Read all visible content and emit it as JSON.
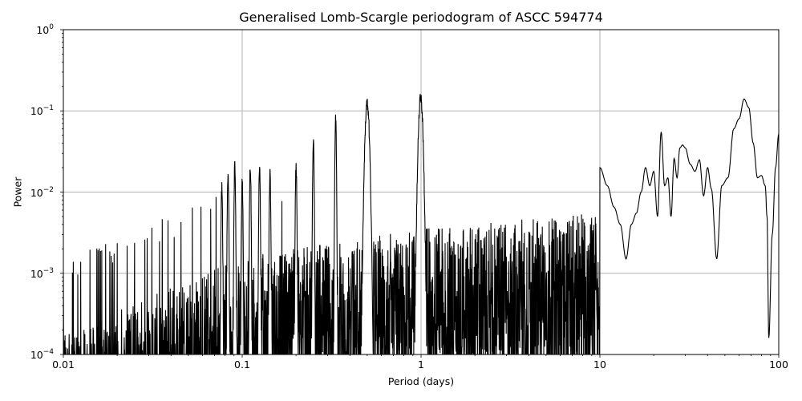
{
  "chart_data": {
    "type": "line",
    "title": "Generalised Lomb-Scargle periodogram of ASCC 594774",
    "xlabel": "Period (days)",
    "ylabel": "Power",
    "xscale": "log",
    "yscale": "log",
    "xlim": [
      0.01,
      100
    ],
    "ylim": [
      0.0001,
      1
    ],
    "grid": true,
    "legend": null,
    "xticks": [
      "0.01",
      "0.1",
      "1",
      "10",
      "100"
    ],
    "yticks": [
      {
        "base": "10",
        "exp": "0"
      },
      {
        "base": "10",
        "exp": "−1"
      },
      {
        "base": "10",
        "exp": "−2"
      },
      {
        "base": "10",
        "exp": "−3"
      },
      {
        "base": "10",
        "exp": "−4"
      }
    ],
    "line_color": "#000000",
    "grid_color": "#b0b0b0",
    "notable_peaks": [
      {
        "period": 0.333,
        "power": 0.095
      },
      {
        "period": 0.5,
        "power": 0.145
      },
      {
        "period": 0.995,
        "power": 0.18
      },
      {
        "period": 0.25,
        "power": 0.05
      },
      {
        "period": 0.2,
        "power": 0.025
      },
      {
        "period": 0.143,
        "power": 0.02
      },
      {
        "period": 0.125,
        "power": 0.024
      },
      {
        "period": 0.111,
        "power": 0.025
      },
      {
        "period": 0.1,
        "power": 0.016
      },
      {
        "period": 0.0909,
        "power": 0.025
      },
      {
        "period": 0.0833,
        "power": 0.02
      },
      {
        "period": 0.0769,
        "power": 0.014
      }
    ],
    "smooth_long_period": {
      "x": [
        10,
        11,
        12,
        13,
        14,
        15,
        16,
        17,
        18,
        19,
        20,
        21,
        22,
        23,
        24,
        25,
        26,
        27,
        28,
        29,
        30,
        32,
        34,
        36,
        38,
        40,
        42,
        45,
        48,
        52,
        56,
        60,
        64,
        68,
        72,
        76,
        80,
        84,
        86,
        88,
        92,
        96,
        100
      ],
      "y": [
        0.02,
        0.012,
        0.0065,
        0.004,
        0.0015,
        0.004,
        0.0055,
        0.01,
        0.02,
        0.012,
        0.018,
        0.005,
        0.055,
        0.012,
        0.015,
        0.005,
        0.026,
        0.015,
        0.035,
        0.038,
        0.035,
        0.022,
        0.018,
        0.025,
        0.009,
        0.02,
        0.011,
        0.0015,
        0.012,
        0.015,
        0.06,
        0.08,
        0.14,
        0.11,
        0.04,
        0.015,
        0.016,
        0.012,
        0.005,
        0.00016,
        0.003,
        0.02,
        0.052
      ]
    }
  }
}
